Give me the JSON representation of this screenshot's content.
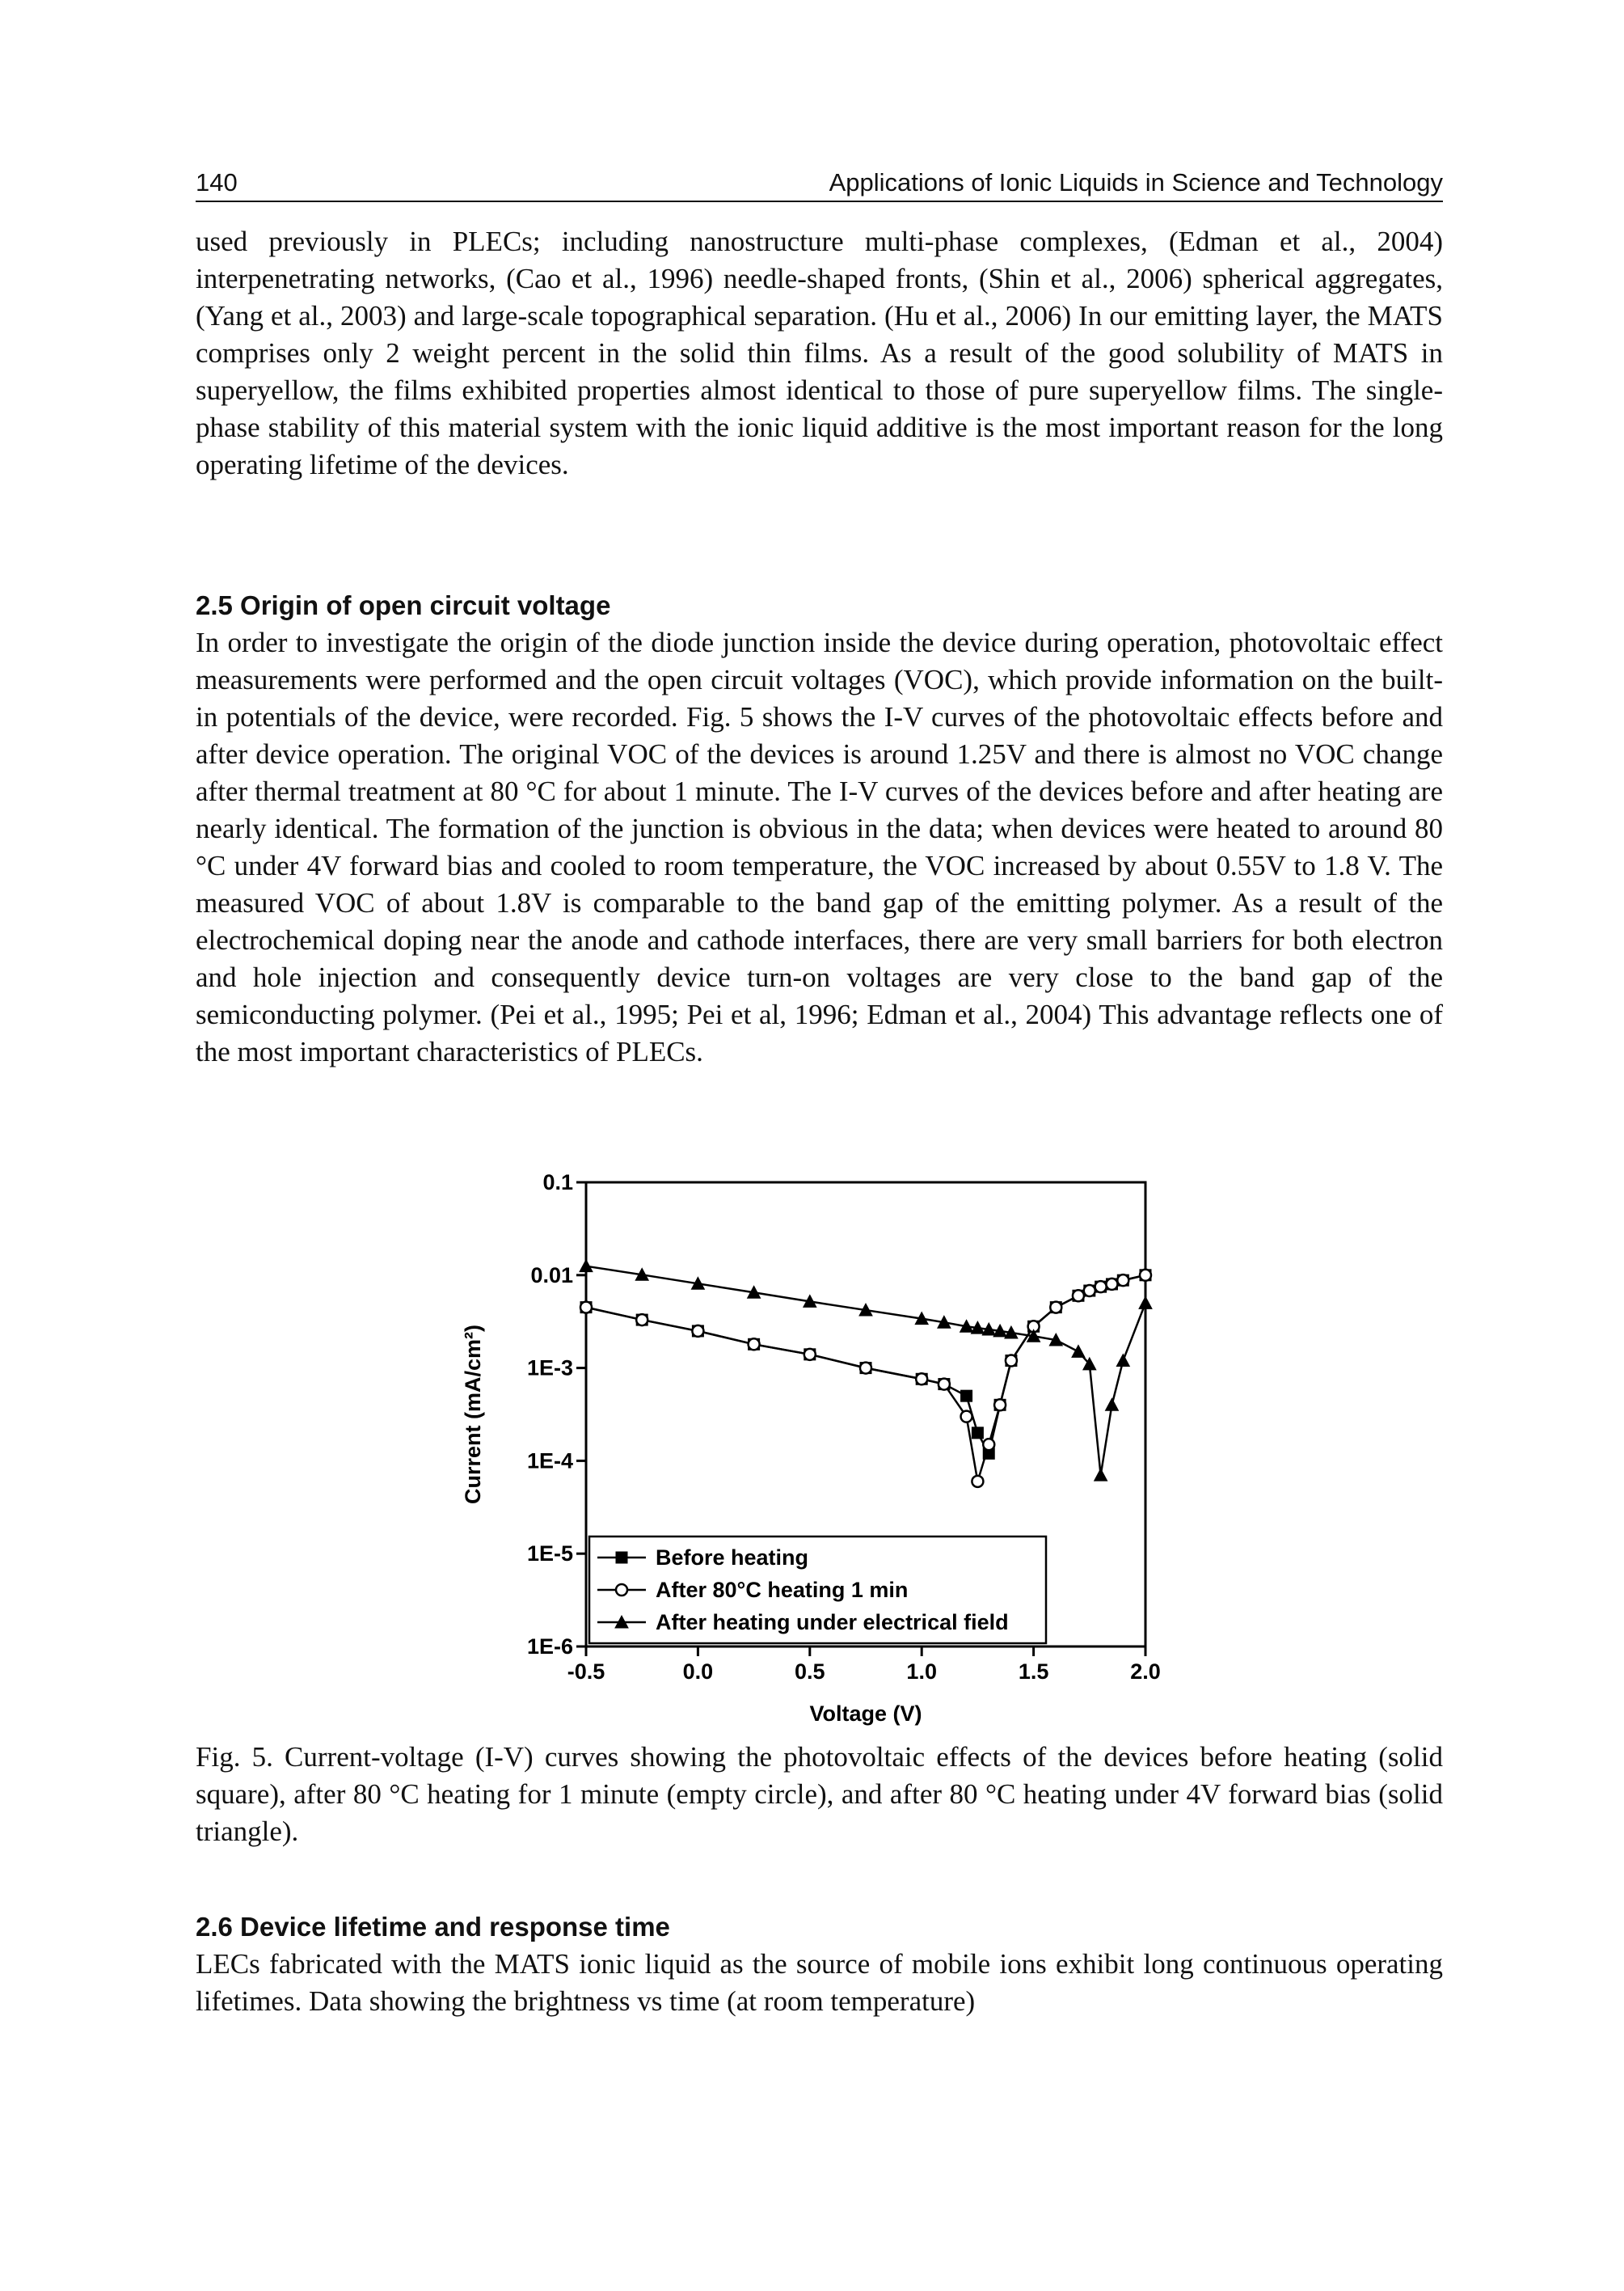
{
  "header": {
    "page_number": "140",
    "running_title": "Applications of Ionic Liquids in Science and Technology"
  },
  "intro_paragraph": "used previously in PLECs; including nanostructure multi-phase complexes, (Edman et al., 2004) interpenetrating networks, (Cao et al., 1996) needle-shaped fronts, (Shin et al., 2006) spherical aggregates, (Yang et al., 2003) and large-scale topographical separation. (Hu et al., 2006) In our emitting layer, the MATS comprises only 2 weight percent in the solid thin films. As a result of the good solubility of MATS in superyellow, the films exhibited properties almost identical to those of pure superyellow films. The single-phase stability of this material system with the ionic liquid additive is the most important reason for the long operating lifetime of the devices.",
  "section_2_5": {
    "heading": "2.5 Origin of open circuit voltage",
    "paragraph": "In order to investigate the origin of the diode junction inside the device during operation, photovoltaic effect measurements were performed and the open circuit voltages (VOC), which provide information on the built-in potentials of the device, were recorded. Fig. 5 shows the I-V curves of the photovoltaic effects before and after device operation. The original VOC of the devices is around 1.25V and there is almost no VOC change after thermal treatment at 80 °C for about 1 minute. The I-V curves of the devices before and after heating are nearly identical. The formation of the junction is obvious in the data; when devices were heated to around 80 °C under 4V forward bias and cooled to room temperature, the VOC increased by about 0.55V to 1.8 V. The measured VOC of about 1.8V is comparable to the band gap of the emitting polymer. As a result of the electrochemical doping near the anode and cathode interfaces, there are very small barriers for both electron and hole injection and consequently device turn-on voltages are very close to the band gap of the semiconducting polymer. (Pei et al., 1995; Pei et al, 1996; Edman et al., 2004) This advantage reflects one of the most important characteristics of PLECs."
  },
  "chart_data": {
    "type": "line",
    "x_label": "Voltage (V)",
    "y_label": "Current (mA/cm²)",
    "log_y": true,
    "legend": "lower-left",
    "x": [
      -0.5,
      -0.25,
      0,
      0.25,
      0.5,
      0.75,
      1.0,
      1.1,
      1.2,
      1.25,
      1.3,
      1.35,
      1.4,
      1.5,
      1.6,
      1.7,
      1.75,
      1.8,
      1.85,
      1.9,
      2.0
    ],
    "series": [
      {
        "name": "Before heating",
        "color": "#000000",
        "marker": "square",
        "values": [
          0.0045,
          0.0033,
          0.0025,
          0.0018,
          0.0014,
          0.001,
          0.00076,
          0.00067,
          0.0005,
          0.0002,
          0.00012,
          0.0004,
          0.0012,
          0.0028,
          0.0045,
          0.006,
          0.0068,
          0.0075,
          0.008,
          0.0088,
          0.01
        ]
      },
      {
        "name": "After 80°C heating 1 min",
        "color": "#000000",
        "marker": "circle",
        "values": [
          0.0045,
          0.0033,
          0.0025,
          0.0018,
          0.0014,
          0.001,
          0.00076,
          0.00067,
          0.0003,
          6e-05,
          0.00015,
          0.0004,
          0.0012,
          0.0028,
          0.0045,
          0.006,
          0.0068,
          0.0075,
          0.008,
          0.0088,
          0.01
        ]
      },
      {
        "name": "After heating under electrical field",
        "color": "#000000",
        "marker": "triangle",
        "values": [
          0.0125,
          0.0101,
          0.0081,
          0.0065,
          0.0052,
          0.0042,
          0.0034,
          0.0031,
          0.0028,
          0.0027,
          0.0026,
          0.0025,
          0.0024,
          0.0022,
          0.002,
          0.0015,
          0.0011,
          7e-05,
          0.0004,
          0.0012,
          0.005
        ]
      }
    ],
    "xlim": [
      -0.5,
      2.0
    ],
    "xticks": [
      -0.5,
      {
        "value": 0,
        "label": "0.0"
      },
      0.5,
      {
        "value": 1,
        "label": "1.0"
      },
      1.5,
      {
        "value": 2,
        "label": "2.0"
      }
    ],
    "ylim": [
      1e-06,
      0.1
    ],
    "yticks": [
      {
        "value": 1e-06,
        "label": "1E-6"
      },
      {
        "value": 1e-05,
        "label": "1E-5"
      },
      {
        "value": 0.0001,
        "label": "1E-4"
      },
      {
        "value": 0.001,
        "label": "1E-3"
      },
      0.01,
      0.1
    ]
  },
  "figure_caption": "Fig. 5. Current-voltage (I-V) curves showing the photovoltaic effects of the devices before heating (solid square), after 80 °C heating for 1 minute (empty circle), and after 80 °C heating under 4V forward bias (solid triangle).",
  "section_2_6": {
    "heading": "2.6 Device lifetime and response time",
    "paragraph": "LECs fabricated with the MATS ionic liquid as the source of mobile ions exhibit long continuous operating lifetimes. Data showing the brightness vs time (at room temperature)"
  }
}
